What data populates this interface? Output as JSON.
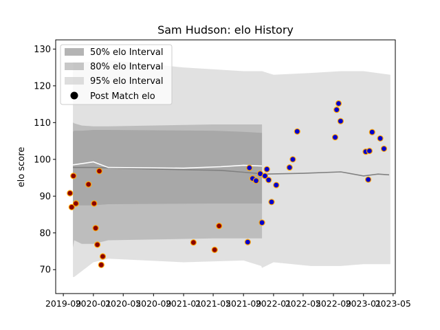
{
  "chart_data": {
    "type": "scatter",
    "title": "Sam Hudson: elo History",
    "xlabel": "",
    "ylabel": "elo score",
    "ylim": [
      63.5,
      132.5
    ],
    "xlim": [
      "2019-08-01",
      "2023-05-10"
    ],
    "yticks": [
      70,
      80,
      90,
      100,
      110,
      120,
      130
    ],
    "xticks": [
      "2019-09",
      "2020-01",
      "2020-05",
      "2020-09",
      "2021-01",
      "2021-05",
      "2021-09",
      "2022-01",
      "2022-05",
      "2022-09",
      "2023-01",
      "2023-05"
    ],
    "grid": false,
    "legend": {
      "placement": "top-left",
      "entries": [
        "50% elo Interval",
        "80% elo Interval",
        "95% elo Interval",
        "Post Match elo"
      ]
    },
    "colors": {
      "band50": "#777777",
      "band80": "#9a9a9a",
      "band95": "#c8c8c8",
      "line": "#808080",
      "line_light": "#ffffff",
      "marker_fill_early": "#8b0000",
      "marker_fill_late": "#0000cd",
      "marker_edge": "#ffa500"
    },
    "bands": [
      {
        "name": "50% elo Interval",
        "x": [
          "2019-10-10",
          "2019-10-15",
          "2019-11-15",
          "2020-01-01",
          "2020-03-01",
          "2021-05-01",
          "2021-09-01",
          "2021-11-12",
          "2021-11-15"
        ],
        "low": [
          88,
          87.5,
          87.5,
          87.5,
          87.8,
          88,
          88,
          88,
          88
        ],
        "high": [
          107.5,
          107.8,
          107.8,
          108,
          108,
          107.8,
          107.5,
          107.2,
          107.2
        ]
      },
      {
        "name": "80% elo Interval",
        "x": [
          "2019-10-10",
          "2019-10-15",
          "2019-11-15",
          "2020-01-01",
          "2020-03-01",
          "2021-05-01",
          "2021-09-01",
          "2021-11-12",
          "2021-11-15"
        ],
        "low": [
          76,
          78,
          77,
          77,
          78,
          78.5,
          78.5,
          78.5,
          78.5
        ],
        "high": [
          110,
          109.8,
          109.2,
          109,
          109,
          109.5,
          109.5,
          109.5,
          109.5
        ]
      },
      {
        "name": "95% elo Interval",
        "x": [
          "2019-10-10",
          "2019-10-15",
          "2020-01-01",
          "2020-03-01",
          "2021-01-01",
          "2021-09-01",
          "2021-11-12",
          "2021-11-15",
          "2022-01-01",
          "2022-06-01",
          "2022-10-01",
          "2023-01-01",
          "2023-04-20"
        ],
        "low": [
          68,
          68,
          72,
          73,
          72,
          72.5,
          71,
          70.5,
          72,
          71,
          71,
          71.5,
          71.5
        ],
        "high": [
          126.5,
          126.5,
          126.5,
          127,
          125,
          124,
          124,
          124,
          123,
          123.5,
          124,
          124,
          123
        ]
      }
    ],
    "series": [
      {
        "name": "Post Match elo",
        "x": [
          "2019-09-28",
          "2019-10-05",
          "2019-10-12",
          "2019-10-22",
          "2019-12-12",
          "2020-01-04",
          "2020-01-10",
          "2020-01-17",
          "2020-01-25",
          "2020-02-02",
          "2020-02-08",
          "2021-02-10",
          "2021-05-07",
          "2021-05-25",
          "2021-09-18",
          "2021-09-25",
          "2021-10-08",
          "2021-10-22",
          "2021-11-08",
          "2021-11-15",
          "2021-11-27",
          "2021-12-05",
          "2021-12-12",
          "2021-12-24",
          "2022-01-12",
          "2022-03-07",
          "2022-03-20",
          "2022-04-07",
          "2022-09-08",
          "2022-09-14",
          "2022-09-22",
          "2022-09-30",
          "2023-01-10",
          "2023-01-20",
          "2023-01-25",
          "2023-02-05",
          "2023-03-10",
          "2023-03-25"
        ],
        "y": [
          90.8,
          87,
          95.5,
          88,
          93.2,
          88,
          81.3,
          76.8,
          96.8,
          71.3,
          73.6,
          77.4,
          75.4,
          81.9,
          77.5,
          97.7,
          94.8,
          94.2,
          96.1,
          82.8,
          95.5,
          97.3,
          94.4,
          88.4,
          93.0,
          97.8,
          100.0,
          107.6,
          106.0,
          113.5,
          115.2,
          110.4,
          102.1,
          94.5,
          102.3,
          107.4,
          105.7,
          102.9
        ]
      }
    ],
    "lines": [
      {
        "name": "elo trend",
        "x": [
          "2019-10-10",
          "2020-01-01",
          "2020-06-01",
          "2021-01-01",
          "2021-06-01",
          "2021-09-01",
          "2021-12-01",
          "2022-05-01",
          "2022-10-01",
          "2023-01-01",
          "2023-03-01",
          "2023-04-15"
        ],
        "y": [
          97.8,
          97.8,
          97.5,
          97.2,
          97.0,
          96.5,
          96.0,
          96.2,
          96.6,
          95.5,
          96.0,
          95.8
        ]
      },
      {
        "name": "elo trend light",
        "x": [
          "2019-10-10",
          "2020-01-01",
          "2020-03-01",
          "2021-01-01",
          "2021-06-01",
          "2021-09-01",
          "2021-11-15"
        ],
        "y": [
          98.5,
          99.3,
          97.8,
          97.6,
          98.0,
          98.4,
          98.2
        ]
      }
    ]
  }
}
